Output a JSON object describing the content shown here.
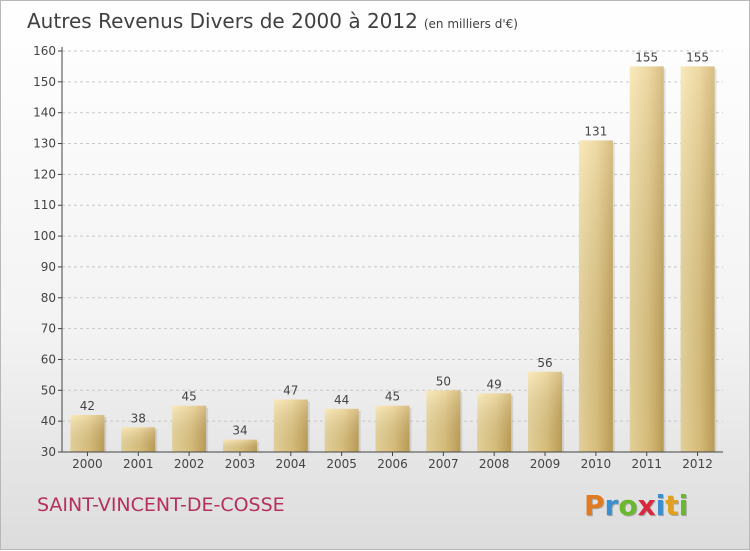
{
  "header": {
    "title": "Autres Revenus Divers de 2000 à 2012",
    "subtitle": "(en milliers d'€)"
  },
  "footer": {
    "place": "SAINT-VINCENT-DE-COSSE"
  },
  "logo": {
    "letters": [
      "P",
      "r",
      "o",
      "x",
      "i",
      "t",
      "i"
    ],
    "colors": [
      "#e07b20",
      "#3a8fd0",
      "#6ab82e",
      "#d8283c",
      "#3a8fd0",
      "#e0a020",
      "#6ab82e"
    ]
  },
  "colors": {
    "bar": "#e3c57a",
    "bar_light": "#f4dfa0",
    "axis": "#444444",
    "grid": "#c8c8c8"
  },
  "chart_data": {
    "type": "bar",
    "categories": [
      "2000",
      "2001",
      "2002",
      "2003",
      "2004",
      "2005",
      "2006",
      "2007",
      "2008",
      "2009",
      "2010",
      "2011",
      "2012"
    ],
    "values": [
      42,
      38,
      45,
      34,
      47,
      44,
      45,
      50,
      49,
      56,
      131,
      155,
      155
    ],
    "ylim": [
      30,
      160
    ],
    "yticks": [
      30,
      40,
      50,
      60,
      70,
      80,
      90,
      100,
      110,
      120,
      130,
      140,
      150,
      160
    ],
    "grid": true,
    "grid_style": "dashed-horizontal"
  }
}
